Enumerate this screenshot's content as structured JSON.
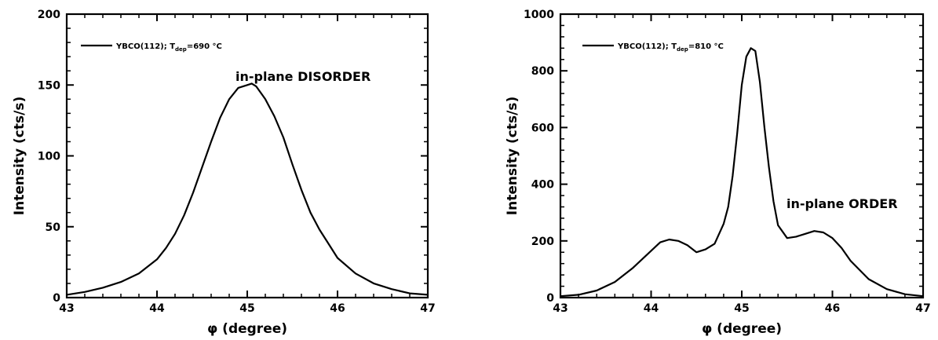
{
  "chart_data": [
    {
      "type": "line",
      "xlabel": "φ (degree)",
      "ylabel": "Intensity (cts/s)",
      "xlim": [
        43,
        47
      ],
      "ylim": [
        0,
        200
      ],
      "xticks": [
        "43",
        "44",
        "45",
        "46",
        "47"
      ],
      "yticks": [
        "0",
        "50",
        "100",
        "150",
        "200"
      ],
      "grid": false,
      "legend": {
        "placement": "top-left",
        "label": "YBCO(112); T",
        "sub": "dep",
        "suffix": "=690 °C"
      },
      "annotation": "in-plane DISORDER",
      "series": [
        {
          "x": [
            43.0,
            43.2,
            43.4,
            43.6,
            43.8,
            44.0,
            44.1,
            44.2,
            44.3,
            44.4,
            44.5,
            44.6,
            44.7,
            44.8,
            44.9,
            45.0,
            45.05,
            45.1,
            45.2,
            45.3,
            45.4,
            45.5,
            45.6,
            45.7,
            45.8,
            45.9,
            46.0,
            46.2,
            46.4,
            46.6,
            46.8,
            47.0
          ],
          "y": [
            2,
            4,
            7,
            11,
            17,
            27,
            35,
            45,
            58,
            74,
            92,
            110,
            127,
            140,
            148,
            150,
            151,
            149,
            140,
            128,
            113,
            94,
            76,
            60,
            48,
            38,
            28,
            17,
            10,
            6,
            3,
            2
          ]
        }
      ]
    },
    {
      "type": "line",
      "xlabel": "φ (degree)",
      "ylabel": "Intensity (cts/s)",
      "xlim": [
        43,
        47
      ],
      "ylim": [
        0,
        1000
      ],
      "xticks": [
        "43",
        "44",
        "45",
        "46",
        "47"
      ],
      "yticks": [
        "0",
        "200",
        "400",
        "600",
        "800",
        "1000"
      ],
      "grid": false,
      "legend": {
        "placement": "top-left",
        "label": "YBCO(112); T",
        "sub": "dep",
        "suffix": "=810 °C"
      },
      "annotation": "in-plane ORDER",
      "series": [
        {
          "x": [
            43.0,
            43.2,
            43.4,
            43.6,
            43.8,
            44.0,
            44.1,
            44.2,
            44.3,
            44.4,
            44.5,
            44.6,
            44.7,
            44.8,
            44.85,
            44.9,
            44.95,
            45.0,
            45.05,
            45.1,
            45.15,
            45.2,
            45.25,
            45.3,
            45.35,
            45.4,
            45.5,
            45.6,
            45.7,
            45.8,
            45.9,
            46.0,
            46.1,
            46.2,
            46.4,
            46.6,
            46.8,
            47.0
          ],
          "y": [
            5,
            10,
            25,
            55,
            105,
            165,
            195,
            205,
            200,
            185,
            160,
            170,
            190,
            260,
            320,
            430,
            580,
            750,
            850,
            880,
            870,
            760,
            600,
            460,
            340,
            255,
            210,
            215,
            225,
            235,
            230,
            210,
            175,
            130,
            65,
            30,
            12,
            5
          ]
        }
      ]
    }
  ]
}
